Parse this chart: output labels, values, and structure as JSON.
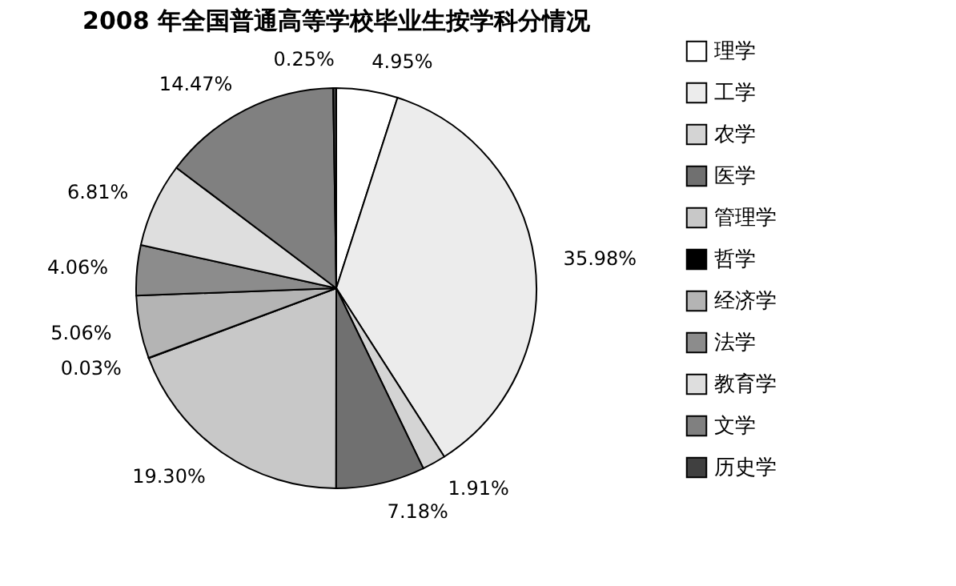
{
  "chart_data": {
    "type": "pie",
    "title": "2008 年全国普通高等学校毕业生按学科分情况",
    "categories": [
      "理学",
      "工学",
      "农学",
      "医学",
      "管理学",
      "哲学",
      "经济学",
      "法学",
      "教育学",
      "文学",
      "历史学"
    ],
    "values": [
      4.95,
      35.98,
      1.91,
      7.18,
      19.3,
      0.03,
      5.06,
      4.06,
      6.81,
      14.47,
      0.25
    ],
    "value_labels": [
      "4.95%",
      "35.98%",
      "1.91%",
      "7.18%",
      "19.30%",
      "0.03%",
      "5.06%",
      "4.06%",
      "6.81%",
      "14.47%",
      "0.25%"
    ],
    "colors": [
      "#ffffff",
      "#ececec",
      "#d4d4d4",
      "#707070",
      "#c8c8c8",
      "#000000",
      "#b4b4b4",
      "#8c8c8c",
      "#dedede",
      "#808080",
      "#404040"
    ],
    "legend": "right"
  }
}
